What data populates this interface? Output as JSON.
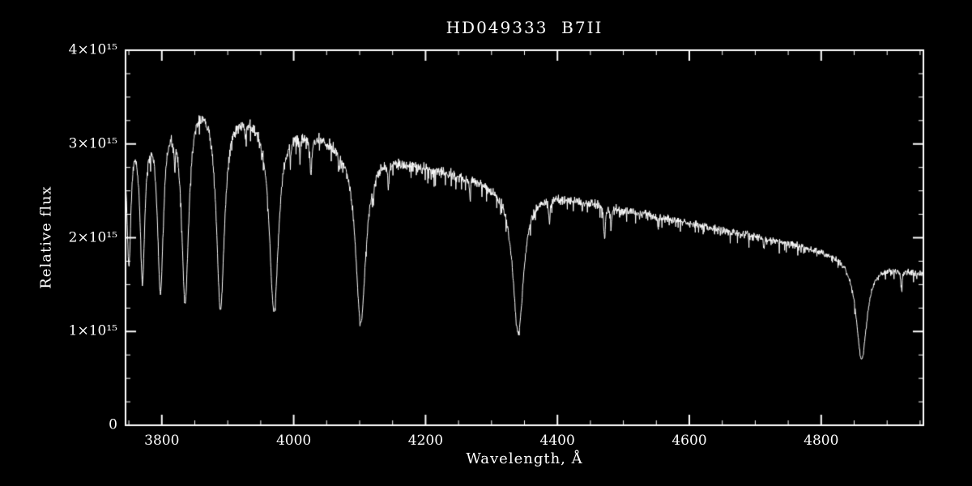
{
  "figure": {
    "background": "#000000",
    "foreground": "#ffffff"
  },
  "chart_data": {
    "type": "line",
    "title": "HD049333  B7II",
    "xlabel": "Wavelength, Å",
    "ylabel": "Relative flux",
    "xlim": [
      3745,
      4955
    ],
    "ylim": [
      0,
      4000000000000000.0
    ],
    "x_ticks": [
      3800,
      4000,
      4200,
      4400,
      4600,
      4800
    ],
    "x_tick_labels": [
      "3800",
      "4000",
      "4200",
      "4400",
      "4600",
      "4800"
    ],
    "x_minor_step": 50,
    "y_ticks": [
      0,
      1000000000000000.0,
      2000000000000000.0,
      3000000000000000.0,
      4000000000000000.0
    ],
    "y_tick_labels": [
      "0",
      "1×10¹⁵",
      "2×10¹⁵",
      "3×10¹⁵",
      "4×10¹⁵"
    ],
    "y_minor_step": 250000000000000.0,
    "grid": false,
    "legend": false,
    "series": [
      {
        "description": "stellar spectrum: continuum anchor points [wavelength Å, flux] with Balmer/He absorption lines",
        "continuum": [
          [
            3740,
            3000000000000000.0
          ],
          [
            3757,
            3280000000000000.0
          ],
          [
            3783,
            3380000000000000.0
          ],
          [
            3815,
            3470000000000000.0
          ],
          [
            3858,
            3600000000000000.0
          ],
          [
            3885,
            3520000000000000.0
          ],
          [
            3912,
            3420000000000000.0
          ],
          [
            3950,
            3350000000000000.0
          ],
          [
            4000,
            3220000000000000.0
          ],
          [
            4050,
            3100000000000000.0
          ],
          [
            4090,
            3000000000000000.0
          ],
          [
            4140,
            2880000000000000.0
          ],
          [
            4190,
            2780000000000000.0
          ],
          [
            4250,
            2680000000000000.0
          ],
          [
            4310,
            2570000000000000.0
          ],
          [
            4370,
            2480000000000000.0
          ],
          [
            4440,
            2400000000000000.0
          ],
          [
            4500,
            2300000000000000.0
          ],
          [
            4560,
            2220000000000000.0
          ],
          [
            4620,
            2130000000000000.0
          ],
          [
            4680,
            2050000000000000.0
          ],
          [
            4740,
            1960000000000000.0
          ],
          [
            4800,
            1870000000000000.0
          ],
          [
            4850,
            1790000000000000.0
          ],
          [
            4900,
            1700000000000000.0
          ],
          [
            4955,
            1620000000000000.0
          ]
        ],
        "absorption_lines": [
          {
            "center": 3750.2,
            "depth": 0.45,
            "width": 3.5
          },
          {
            "center": 3770.6,
            "depth": 0.52,
            "width": 4.5
          },
          {
            "center": 3797.9,
            "depth": 0.57,
            "width": 5.5
          },
          {
            "center": 3819.6,
            "depth": 0.1,
            "width": 1.2
          },
          {
            "center": 3835.4,
            "depth": 0.62,
            "width": 6.5
          },
          {
            "center": 3889.0,
            "depth": 0.64,
            "width": 7.5
          },
          {
            "center": 3926.5,
            "depth": 0.06,
            "width": 1.0
          },
          {
            "center": 3970.1,
            "depth": 0.63,
            "width": 8.5
          },
          {
            "center": 3995.0,
            "depth": 0.05,
            "width": 0.8
          },
          {
            "center": 4009.3,
            "depth": 0.07,
            "width": 1.0
          },
          {
            "center": 4026.2,
            "depth": 0.14,
            "width": 1.5
          },
          {
            "center": 4069.0,
            "depth": 0.05,
            "width": 0.8
          },
          {
            "center": 4101.7,
            "depth": 0.63,
            "width": 9.5
          },
          {
            "center": 4120.8,
            "depth": 0.08,
            "width": 1.0
          },
          {
            "center": 4143.8,
            "depth": 0.09,
            "width": 1.2
          },
          {
            "center": 4267.0,
            "depth": 0.06,
            "width": 0.8
          },
          {
            "center": 4340.5,
            "depth": 0.61,
            "width": 10
          },
          {
            "center": 4387.9,
            "depth": 0.1,
            "width": 1.2
          },
          {
            "center": 4437.6,
            "depth": 0.04,
            "width": 0.8
          },
          {
            "center": 4471.5,
            "depth": 0.14,
            "width": 1.5
          },
          {
            "center": 4481.2,
            "depth": 0.1,
            "width": 1.0
          },
          {
            "center": 4552.6,
            "depth": 0.05,
            "width": 0.8
          },
          {
            "center": 4713.1,
            "depth": 0.06,
            "width": 1.0
          },
          {
            "center": 4861.3,
            "depth": 0.6,
            "width": 10
          },
          {
            "center": 4921.9,
            "depth": 0.1,
            "width": 1.2
          }
        ],
        "noise": 0.01
      }
    ]
  }
}
